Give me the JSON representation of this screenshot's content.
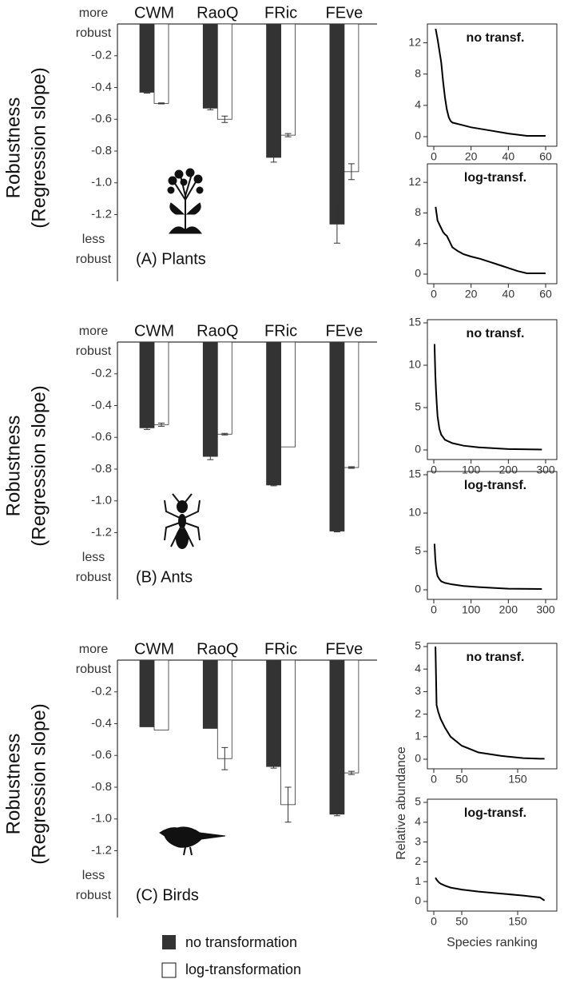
{
  "chart_data": [
    {
      "type": "bar",
      "title": "(A) Plants",
      "y_label": [
        "Robustness",
        "(Regression slope)"
      ],
      "top_annotation": [
        "more",
        "robust"
      ],
      "bottom_annotation": [
        "less",
        "robust"
      ],
      "categories": [
        "CWM",
        "RaoQ",
        "FRic",
        "FEve"
      ],
      "series": [
        {
          "name": "no transformation",
          "color": "#333333",
          "values": [
            -0.43,
            -0.53,
            -0.84,
            -1.26
          ],
          "errors": [
            0.005,
            0.01,
            0.03,
            0.12
          ]
        },
        {
          "name": "log-transformation",
          "color": "#ffffff",
          "values": [
            -0.5,
            -0.6,
            -0.7,
            -0.93
          ],
          "errors": [
            0.003,
            0.02,
            0.01,
            0.05
          ]
        }
      ],
      "ylim": [
        0,
        -1.6
      ],
      "yticks": [
        -0.2,
        -0.4,
        -0.6,
        -0.8,
        {
          "value": -1,
          "label": "-1.0"
        },
        -1.2
      ]
    },
    {
      "type": "line",
      "title": "no transf.",
      "x": [
        1,
        2,
        3,
        4,
        5,
        6,
        7,
        8,
        9,
        10,
        15,
        20,
        30,
        40,
        50,
        60
      ],
      "values": [
        13.8,
        12.5,
        11,
        9.5,
        7,
        5,
        3.5,
        2.5,
        2,
        1.8,
        1.5,
        1.2,
        0.8,
        0.4,
        0.1,
        0.1
      ],
      "color": "#000000",
      "xlim": [
        0,
        60
      ],
      "ylim": [
        0,
        14
      ],
      "xticks": [
        0,
        20,
        40,
        60
      ],
      "yticks": [
        0,
        4,
        8,
        12
      ]
    },
    {
      "type": "line",
      "title": "log-transf.",
      "x": [
        1,
        2,
        3,
        4,
        5,
        6,
        7,
        8,
        9,
        10,
        13,
        16,
        20,
        25,
        30,
        35,
        40,
        45,
        50,
        60
      ],
      "values": [
        8.8,
        7,
        6.5,
        6,
        5.5,
        5.2,
        5,
        4.5,
        4,
        3.5,
        3,
        2.6,
        2.3,
        2,
        1.6,
        1.2,
        0.8,
        0.4,
        0.1,
        0.1
      ],
      "color": "#000000",
      "xlim": [
        0,
        60
      ],
      "ylim": [
        0,
        14
      ],
      "xticks": [
        0,
        20,
        40,
        60
      ],
      "yticks": [
        0,
        4,
        8,
        12
      ]
    },
    {
      "type": "bar",
      "title": "(B) Ants",
      "y_label": [
        "Robustness",
        "(Regression slope)"
      ],
      "top_annotation": [
        "more",
        "robust"
      ],
      "bottom_annotation": [
        "less",
        "robust"
      ],
      "categories": [
        "CWM",
        "RaoQ",
        "FRic",
        "FEve"
      ],
      "series": [
        {
          "color": "#333333",
          "values": [
            -0.54,
            -0.72,
            -0.9,
            -1.19
          ],
          "errors": [
            0.01,
            0.02,
            0.005,
            0.005
          ]
        },
        {
          "color": "#ffffff",
          "values": [
            -0.52,
            -0.58,
            -0.66,
            -0.79
          ],
          "errors": [
            0.01,
            0.005,
            0,
            0.005
          ]
        }
      ],
      "ylim": [
        0,
        -1.6
      ],
      "yticks": [
        -0.2,
        -0.4,
        -0.6,
        -0.8,
        {
          "value": -1,
          "label": "-1.0"
        },
        -1.2
      ]
    },
    {
      "type": "line",
      "title": "no transf.",
      "x": [
        2,
        4,
        6,
        8,
        10,
        15,
        20,
        30,
        50,
        80,
        120,
        200,
        290
      ],
      "values": [
        12.5,
        9,
        7,
        5.5,
        4,
        2.5,
        1.8,
        1.2,
        0.8,
        0.5,
        0.3,
        0.1,
        0.05
      ],
      "color": "#000000",
      "xlim": [
        0,
        300
      ],
      "ylim": [
        0,
        15
      ],
      "xticks": [
        0,
        100,
        200,
        300
      ],
      "yticks": [
        0,
        5,
        10,
        15
      ]
    },
    {
      "type": "line",
      "title": "log-transf.",
      "x": [
        2,
        4,
        6,
        8,
        10,
        15,
        20,
        30,
        50,
        80,
        120,
        200,
        290
      ],
      "values": [
        6,
        4,
        3,
        2.3,
        1.8,
        1.4,
        1.1,
        0.9,
        0.7,
        0.5,
        0.35,
        0.15,
        0.1
      ],
      "color": "#000000",
      "xlim": [
        0,
        300
      ],
      "ylim": [
        0,
        15
      ],
      "xticks": [
        0,
        100,
        200,
        300
      ],
      "yticks": [
        0,
        5,
        10,
        15
      ]
    },
    {
      "type": "bar",
      "title": "(C) Birds",
      "y_label": [
        "Robustness",
        "(Regression slope)"
      ],
      "top_annotation": [
        "more",
        "robust"
      ],
      "bottom_annotation": [
        "less",
        "robust"
      ],
      "categories": [
        "CWM",
        "RaoQ",
        "FRic",
        "FEve"
      ],
      "series": [
        {
          "color": "#333333",
          "values": [
            -0.42,
            -0.43,
            -0.67,
            -0.97
          ],
          "errors": [
            0,
            0,
            0.01,
            0.01
          ]
        },
        {
          "color": "#ffffff",
          "values": [
            -0.44,
            -0.62,
            -0.91,
            -0.71
          ],
          "errors": [
            0,
            0.07,
            0.11,
            0.01
          ]
        }
      ],
      "ylim": [
        0,
        -1.6
      ],
      "yticks": [
        -0.2,
        -0.4,
        -0.6,
        -0.8,
        {
          "value": -1,
          "label": "-1.0"
        },
        -1.2
      ]
    },
    {
      "type": "line",
      "title": "no transf.",
      "x": [
        3,
        5,
        8,
        12,
        20,
        30,
        50,
        80,
        120,
        160,
        190,
        198
      ],
      "values": [
        5,
        2.4,
        2.1,
        1.8,
        1.4,
        1.0,
        0.6,
        0.3,
        0.15,
        0.05,
        0.02,
        0.02
      ],
      "color": "#000000",
      "xlim": [
        0,
        200
      ],
      "ylim": [
        0,
        5
      ],
      "xticks": [
        0,
        50,
        150
      ],
      "yticks": [
        0,
        1,
        2,
        3,
        4,
        5
      ]
    },
    {
      "type": "line",
      "title": "log-transf.",
      "x": [
        3,
        5,
        8,
        12,
        20,
        30,
        50,
        80,
        120,
        160,
        190,
        198
      ],
      "values": [
        1.2,
        1.1,
        1.0,
        0.9,
        0.8,
        0.7,
        0.6,
        0.5,
        0.4,
        0.3,
        0.2,
        0.05
      ],
      "color": "#000000",
      "xlim": [
        0,
        200
      ],
      "ylim": [
        0,
        5
      ],
      "xticks": [
        0,
        50,
        150
      ],
      "yticks": [
        0,
        1,
        2,
        3,
        4,
        5
      ],
      "x_label": "Species ranking",
      "y_label": "Relative abundance"
    }
  ]
}
